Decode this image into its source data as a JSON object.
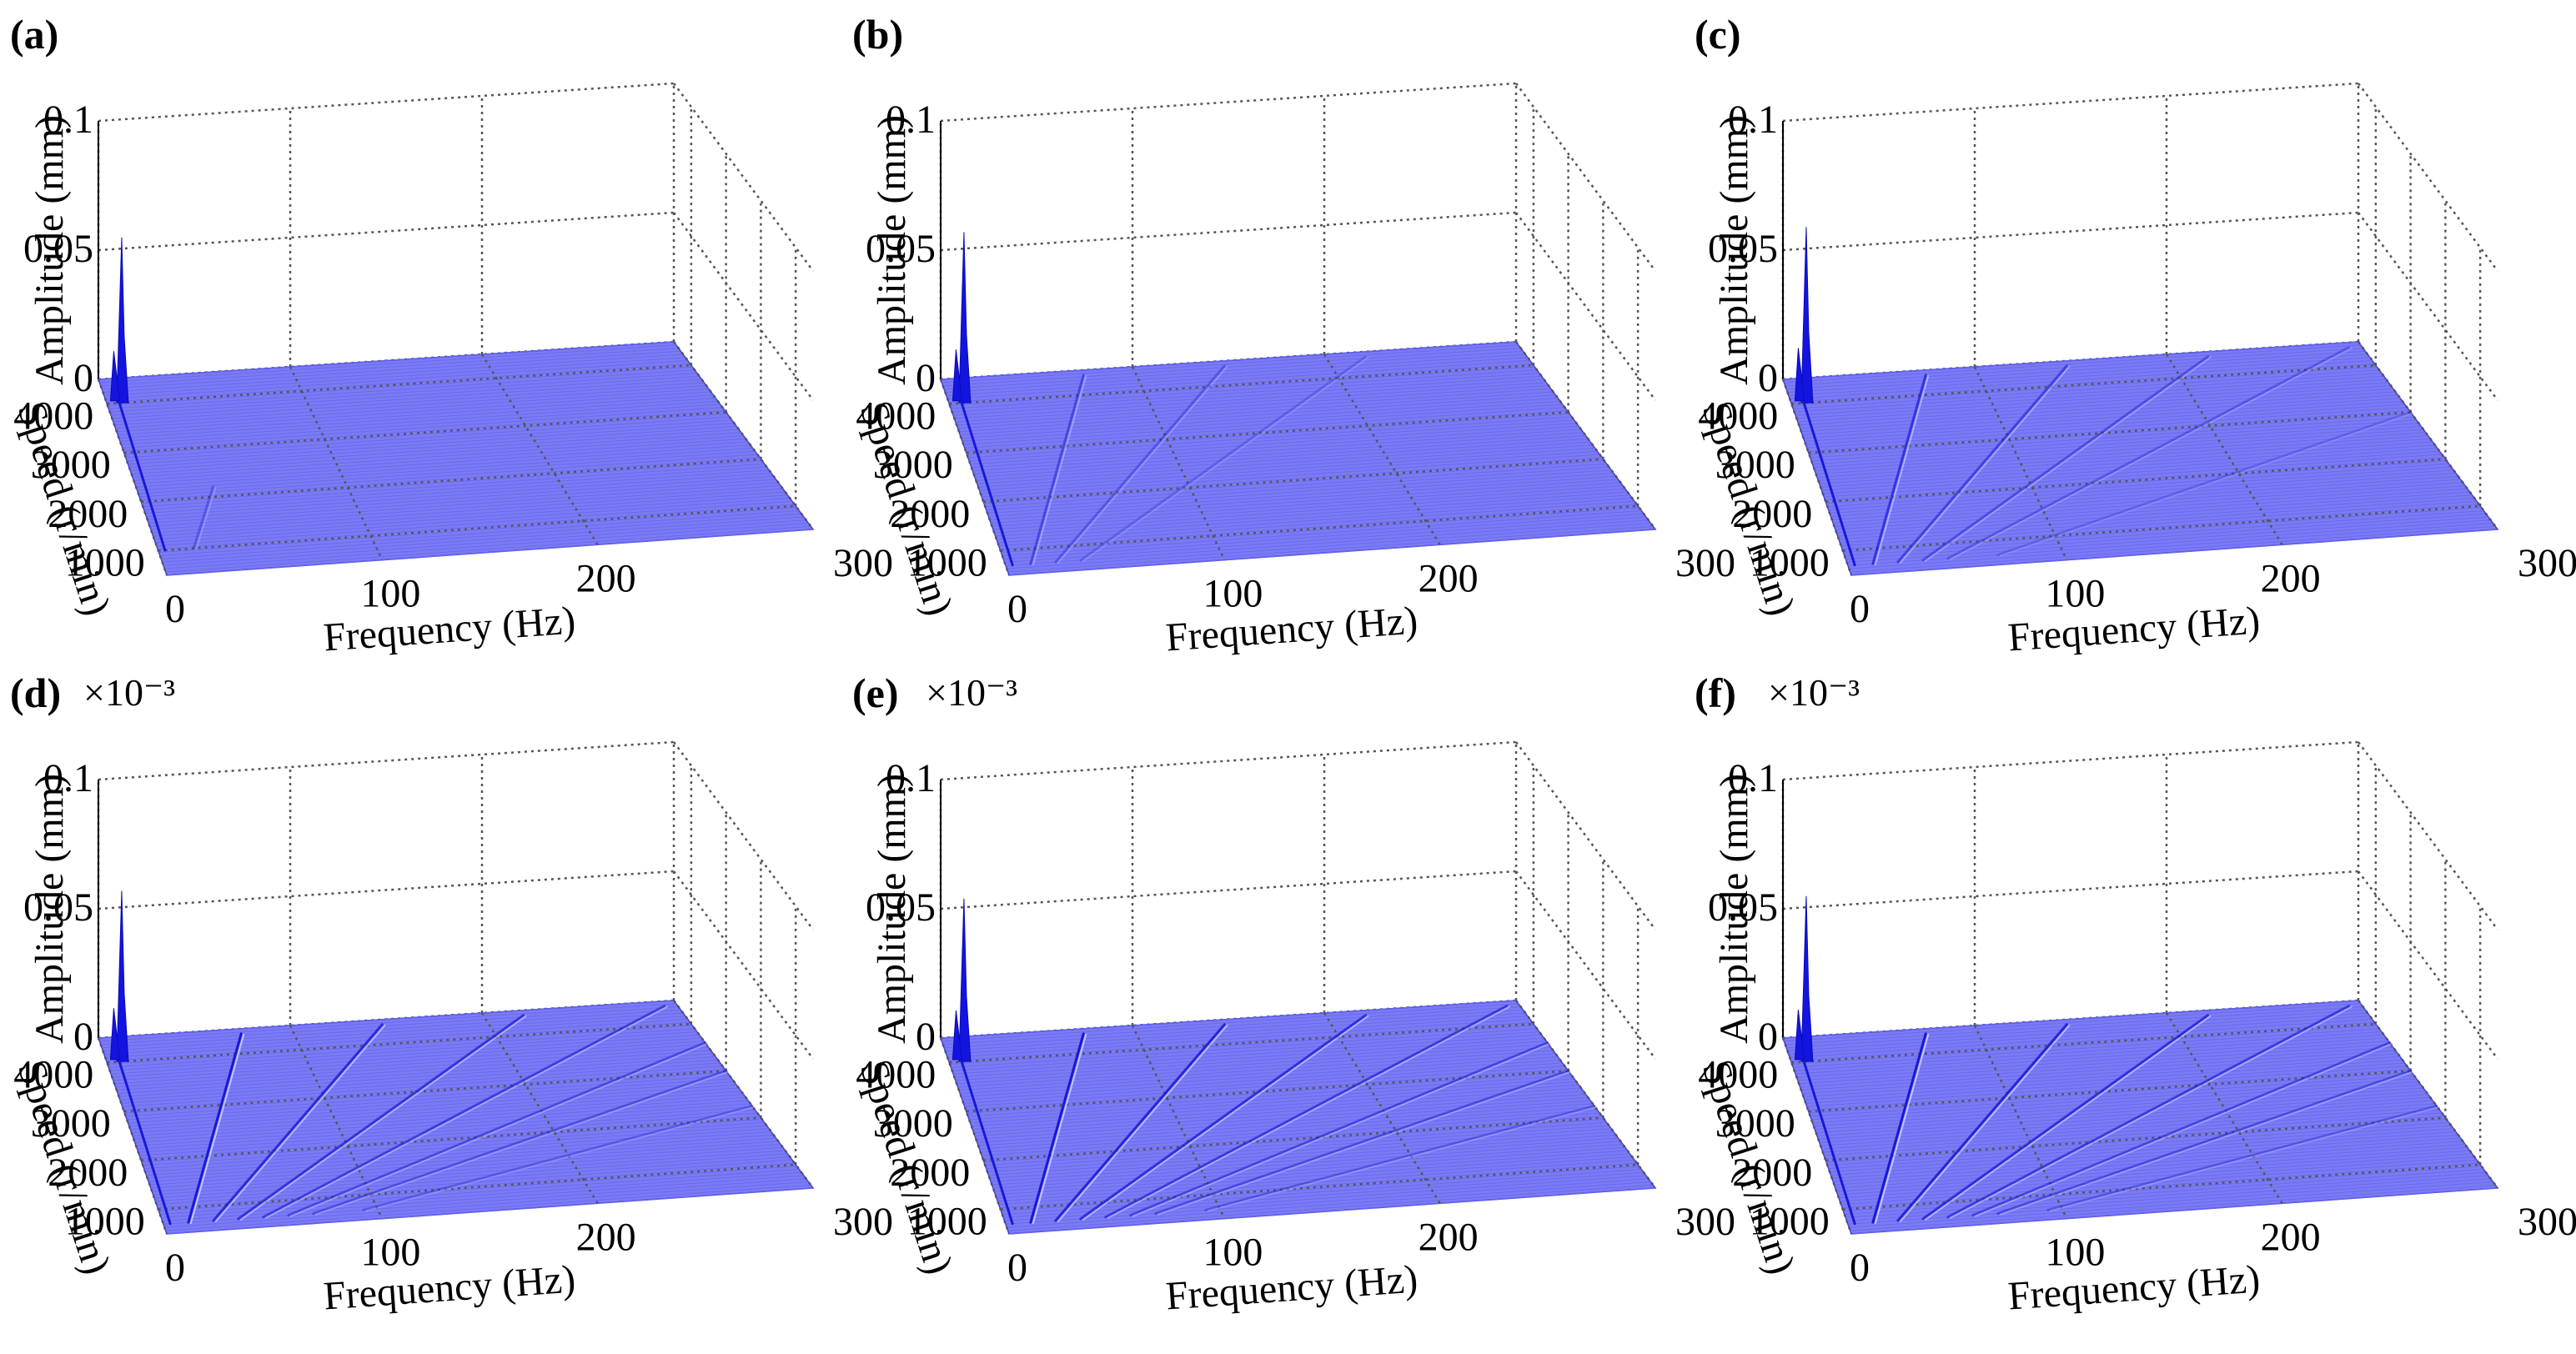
{
  "figure": {
    "exponent_label": "×10⁻³"
  },
  "chart_data": [
    {
      "type": "waterfall-3d",
      "label": "(a)",
      "show_exponent": false,
      "zlabel": "Amplitude (mm)",
      "ylabel": "Speed (r/min)",
      "xlabel": "Frequency (Hz)",
      "z_ticks": [
        "0",
        "0.05",
        "0.1"
      ],
      "y_ticks": [
        "1000",
        "2000",
        "3000",
        "4000"
      ],
      "x_ticks": [
        "0",
        "100",
        "200",
        "300"
      ],
      "xlim": [
        0,
        300
      ],
      "ylim": [
        500,
        4500
      ],
      "zlim": [
        0,
        0.1
      ],
      "peak": {
        "frequency": 8,
        "speed": 4000,
        "amplitude": 0.064
      },
      "ridges": [
        {
          "order": 1,
          "strength": 0.35,
          "speed_range": [
            1000,
            2200
          ]
        }
      ]
    },
    {
      "type": "waterfall-3d",
      "label": "(b)",
      "show_exponent": false,
      "zlabel": "Amplitude (mm)",
      "ylabel": "Speed (r/min)",
      "xlabel": "Frequency (Hz)",
      "z_ticks": [
        "0",
        "0.05",
        "0.1"
      ],
      "y_ticks": [
        "1000",
        "2000",
        "3000",
        "4000"
      ],
      "x_ticks": [
        "0",
        "100",
        "200",
        "300"
      ],
      "xlim": [
        0,
        300
      ],
      "ylim": [
        500,
        4500
      ],
      "zlim": [
        0,
        0.1
      ],
      "peak": {
        "frequency": 8,
        "speed": 4000,
        "amplitude": 0.066
      },
      "ridges": [
        {
          "order": 1,
          "strength": 0.5,
          "speed_range": [
            700,
            4400
          ]
        },
        {
          "order": 2,
          "strength": 0.35,
          "speed_range": [
            700,
            4400
          ]
        },
        {
          "order": 3,
          "strength": 0.25,
          "speed_range": [
            700,
            4400
          ]
        }
      ]
    },
    {
      "type": "waterfall-3d",
      "label": "(c)",
      "show_exponent": false,
      "zlabel": "Amplitude (mm)",
      "ylabel": "Speed (r/min)",
      "xlabel": "Frequency (Hz)",
      "z_ticks": [
        "0",
        "0.05",
        "0.1"
      ],
      "y_ticks": [
        "1000",
        "2000",
        "3000",
        "4000"
      ],
      "x_ticks": [
        "0",
        "100",
        "200",
        "300"
      ],
      "xlim": [
        0,
        300
      ],
      "ylim": [
        500,
        4500
      ],
      "zlim": [
        0,
        0.1
      ],
      "peak": {
        "frequency": 8,
        "speed": 4000,
        "amplitude": 0.068
      },
      "ridges": [
        {
          "order": 1,
          "strength": 0.7,
          "speed_range": [
            700,
            4400
          ]
        },
        {
          "order": 2,
          "strength": 0.55,
          "speed_range": [
            700,
            4400
          ]
        },
        {
          "order": 3,
          "strength": 0.45,
          "speed_range": [
            700,
            4400
          ]
        },
        {
          "order": 4,
          "strength": 0.35,
          "speed_range": [
            700,
            4400
          ]
        },
        {
          "order": 6,
          "strength": 0.25,
          "speed_range": [
            700,
            4400
          ]
        }
      ]
    },
    {
      "type": "waterfall-3d",
      "label": "(d)",
      "show_exponent": true,
      "zlabel": "Amplitude (mm)",
      "ylabel": "Speed (r/min)",
      "xlabel": "Frequency (Hz)",
      "z_ticks": [
        "0",
        "0.05",
        "0.1"
      ],
      "y_ticks": [
        "1000",
        "2000",
        "3000",
        "4000"
      ],
      "x_ticks": [
        "0",
        "100",
        "200",
        "300"
      ],
      "xlim": [
        0,
        300
      ],
      "ylim": [
        500,
        4500
      ],
      "zlim": [
        0,
        0.1
      ],
      "peak": {
        "frequency": 8,
        "speed": 4000,
        "amplitude": 0.066
      },
      "ridges": [
        {
          "order": 1,
          "strength": 1.0,
          "speed_range": [
            700,
            4400
          ]
        },
        {
          "order": 2,
          "strength": 0.8,
          "speed_range": [
            700,
            4400
          ]
        },
        {
          "order": 3,
          "strength": 0.7,
          "speed_range": [
            700,
            4400
          ]
        },
        {
          "order": 4,
          "strength": 0.6,
          "speed_range": [
            700,
            4400
          ]
        },
        {
          "order": 5,
          "strength": 0.5,
          "speed_range": [
            700,
            4400
          ]
        },
        {
          "order": 6,
          "strength": 0.45,
          "speed_range": [
            700,
            4400
          ]
        },
        {
          "order": 8,
          "strength": 0.35,
          "speed_range": [
            700,
            4400
          ]
        }
      ]
    },
    {
      "type": "waterfall-3d",
      "label": "(e)",
      "show_exponent": true,
      "zlabel": "Amplitude (mm)",
      "ylabel": "Speed (r/min)",
      "xlabel": "Frequency (Hz)",
      "z_ticks": [
        "0",
        "0.05",
        "0.1"
      ],
      "y_ticks": [
        "1000",
        "2000",
        "3000",
        "4000"
      ],
      "x_ticks": [
        "0",
        "100",
        "200",
        "300"
      ],
      "xlim": [
        0,
        300
      ],
      "ylim": [
        500,
        4500
      ],
      "zlim": [
        0,
        0.1
      ],
      "peak": {
        "frequency": 8,
        "speed": 4000,
        "amplitude": 0.063
      },
      "ridges": [
        {
          "order": 1,
          "strength": 1.0,
          "speed_range": [
            700,
            4400
          ]
        },
        {
          "order": 2,
          "strength": 0.85,
          "speed_range": [
            700,
            4400
          ]
        },
        {
          "order": 3,
          "strength": 0.75,
          "speed_range": [
            700,
            4400
          ]
        },
        {
          "order": 4,
          "strength": 0.65,
          "speed_range": [
            700,
            4400
          ]
        },
        {
          "order": 5,
          "strength": 0.55,
          "speed_range": [
            700,
            4400
          ]
        },
        {
          "order": 6,
          "strength": 0.5,
          "speed_range": [
            700,
            4400
          ]
        },
        {
          "order": 8,
          "strength": 0.4,
          "speed_range": [
            700,
            4400
          ]
        }
      ]
    },
    {
      "type": "waterfall-3d",
      "label": "(f)",
      "show_exponent": true,
      "zlabel": "Amplitude (mm)",
      "ylabel": "Speed (r/min)",
      "xlabel": "Frequency (Hz)",
      "z_ticks": [
        "0",
        "0.05",
        "0.1"
      ],
      "y_ticks": [
        "1000",
        "2000",
        "3000",
        "4000"
      ],
      "x_ticks": [
        "0",
        "100",
        "200",
        "300"
      ],
      "xlim": [
        0,
        300
      ],
      "ylim": [
        500,
        4500
      ],
      "zlim": [
        0,
        0.1
      ],
      "peak": {
        "frequency": 8,
        "speed": 4000,
        "amplitude": 0.064
      },
      "ridges": [
        {
          "order": 1,
          "strength": 1.0,
          "speed_range": [
            700,
            4400
          ]
        },
        {
          "order": 2,
          "strength": 0.85,
          "speed_range": [
            700,
            4400
          ]
        },
        {
          "order": 3,
          "strength": 0.75,
          "speed_range": [
            700,
            4400
          ]
        },
        {
          "order": 4,
          "strength": 0.65,
          "speed_range": [
            700,
            4400
          ]
        },
        {
          "order": 5,
          "strength": 0.55,
          "speed_range": [
            700,
            4400
          ]
        },
        {
          "order": 6,
          "strength": 0.5,
          "speed_range": [
            700,
            4400
          ]
        },
        {
          "order": 8,
          "strength": 0.4,
          "speed_range": [
            700,
            4400
          ]
        }
      ]
    }
  ]
}
